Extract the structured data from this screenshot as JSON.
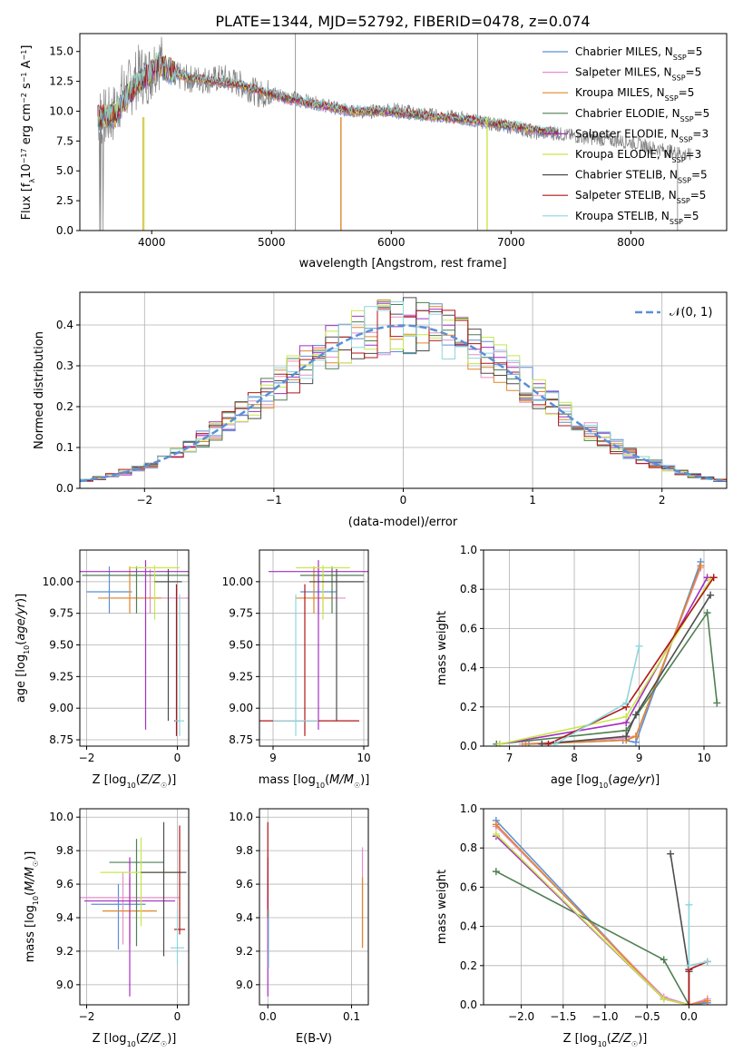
{
  "figure_title": "PLATE=1344, MJD=52792, FIBERID=0478, z=0.074",
  "colors": {
    "Chabrier MILES": "#5b8fd6",
    "Salpeter MILES": "#e68fc8",
    "Kroupa MILES": "#e0862a",
    "Chabrier ELODIE": "#4f7f52",
    "Salpeter ELODIE": "#a62fc1",
    "Kroupa ELODIE": "#c7e84a",
    "Chabrier STELIB": "#4d4d4d",
    "Salpeter STELIB": "#b01616",
    "Kroupa STELIB": "#8fd6dc",
    "data": "#808080",
    "normal": "#5b8fd6"
  },
  "chart_data": [
    {
      "id": "spectrum",
      "type": "line",
      "title": "PLATE=1344, MJD=52792, FIBERID=0478, z=0.074",
      "xlabel": "wavelength [Angstrom, rest frame]",
      "ylabel": "Flux [f_λ 10^-17 erg cm^-2 s^-1 A^-1]",
      "xlim": [
        3400,
        8800
      ],
      "ylim": [
        0,
        16.5
      ],
      "xticks": [
        4000,
        5000,
        6000,
        7000,
        8000
      ],
      "yticks": [
        0.0,
        2.5,
        5.0,
        7.5,
        10.0,
        12.5,
        15.0
      ],
      "legend": "top-right",
      "legend_entries": [
        {
          "label": "Chabrier MILES, N",
          "sub": "SSP",
          "suffix": "=5"
        },
        {
          "label": "Salpeter MILES, N",
          "sub": "SSP",
          "suffix": "=5"
        },
        {
          "label": "Kroupa MILES, N",
          "sub": "SSP",
          "suffix": "=5"
        },
        {
          "label": "Chabrier ELODIE, N",
          "sub": "SSP",
          "suffix": "=5"
        },
        {
          "label": "Salpeter ELODIE, N",
          "sub": "SSP",
          "suffix": "=3"
        },
        {
          "label": "Kroupa ELODIE, N",
          "sub": "SSP",
          "suffix": "=3"
        },
        {
          "label": "Chabrier STELIB, N",
          "sub": "SSP",
          "suffix": "=5"
        },
        {
          "label": "Salpeter STELIB, N",
          "sub": "SSP",
          "suffix": "=5"
        },
        {
          "label": "Kroupa STELIB, N",
          "sub": "SSP",
          "suffix": "=5"
        }
      ],
      "data_series": {
        "x": [
          3550,
          3600,
          3650,
          3700,
          3750,
          3800,
          3850,
          3900,
          3950,
          4000,
          4050,
          4100,
          4200,
          4300,
          4400,
          4500,
          4600,
          4700,
          4800,
          4900,
          5000,
          5200,
          5400,
          5600,
          5800,
          6000,
          6200,
          6400,
          6600,
          6800,
          7000,
          7200,
          7400,
          7600,
          7800,
          8000,
          8200,
          8400,
          8500
        ],
        "y": [
          9.6,
          9.4,
          9.5,
          10.0,
          11.5,
          11.8,
          12.3,
          13.2,
          12.9,
          13.4,
          14.5,
          13.7,
          13.0,
          12.7,
          12.7,
          12.6,
          12.8,
          12.4,
          12.0,
          11.4,
          11.6,
          11.1,
          10.6,
          10.1,
          9.9,
          10.2,
          9.9,
          9.6,
          9.4,
          9.0,
          8.7,
          8.2,
          8.1,
          7.8,
          7.6,
          7.4,
          6.9,
          6.5,
          6.3
        ]
      },
      "model_series": {
        "x": [
          3550,
          3700,
          3850,
          3950,
          4050,
          4150,
          4300,
          4500,
          4700,
          4900,
          5100,
          5300,
          5500,
          5700,
          5900,
          6100,
          6300,
          6500,
          6700,
          6900,
          7100,
          7300,
          7400
        ],
        "y": [
          9.4,
          9.8,
          12.0,
          12.8,
          14.0,
          13.4,
          12.8,
          12.5,
          12.3,
          11.7,
          11.1,
          10.7,
          10.3,
          10.0,
          10.0,
          9.8,
          9.6,
          9.4,
          9.2,
          8.9,
          8.6,
          8.3,
          8.2
        ]
      }
    },
    {
      "id": "residuals",
      "type": "histogram",
      "xlabel": "(data-model)/error",
      "ylabel": "Normed distribution",
      "xlim": [
        -2.5,
        2.5
      ],
      "ylim": [
        0,
        0.48
      ],
      "xticks": [
        -2,
        -1,
        0,
        1,
        2
      ],
      "yticks": [
        0.0,
        0.1,
        0.2,
        0.3,
        0.4
      ],
      "grid": true,
      "legend": "top-right",
      "normal_label": "𝒩(0, 1)",
      "normal_curve": {
        "mean": 0,
        "sigma": 1
      }
    },
    {
      "id": "age_vs_Z",
      "type": "errorbar",
      "xlabel": "Z [log10(Z/Z☉)]",
      "ylabel": "age  [log10(age/yr)]",
      "xlim": [
        -2.15,
        0.25
      ],
      "ylim": [
        8.7,
        10.25
      ],
      "xticks": [
        -2,
        0
      ],
      "yticks": [
        8.75,
        9.0,
        9.25,
        9.5,
        9.75,
        10.0
      ],
      "grid": true,
      "points": [
        {
          "model": "Chabrier MILES",
          "x": -1.5,
          "xerr": 0.5,
          "y": 9.92,
          "ylo": 9.75,
          "yhi": 10.12
        },
        {
          "model": "Salpeter MILES",
          "x": -0.6,
          "xerr": 0.85,
          "y": 9.87,
          "ylo": 9.75,
          "yhi": 10.1
        },
        {
          "model": "Kroupa MILES",
          "x": -1.05,
          "xerr": 0.7,
          "y": 9.87,
          "ylo": 9.75,
          "yhi": 10.12
        },
        {
          "model": "Chabrier ELODIE",
          "x": -0.9,
          "xerr": 1.2,
          "y": 10.05,
          "ylo": 9.75,
          "yhi": 10.12
        },
        {
          "model": "Salpeter ELODIE",
          "x": -0.7,
          "xerr": 1.95,
          "y": 10.08,
          "ylo": 8.83,
          "yhi": 10.17
        },
        {
          "model": "Kroupa ELODIE",
          "x": -0.5,
          "xerr": 0.55,
          "y": 10.11,
          "ylo": 9.7,
          "yhi": 10.13
        },
        {
          "model": "Chabrier STELIB",
          "x": -0.2,
          "xerr": 0.3,
          "y": 10.0,
          "ylo": 8.9,
          "yhi": 10.1
        },
        {
          "model": "Salpeter STELIB",
          "x": -0.02,
          "xerr": 0.05,
          "y": 8.9,
          "ylo": 8.78,
          "yhi": 9.98
        },
        {
          "model": "Kroupa STELIB",
          "x": 0.05,
          "xerr": 0.1,
          "y": 8.9,
          "ylo": 8.78,
          "yhi": 9.9
        }
      ]
    },
    {
      "id": "age_vs_mass",
      "type": "errorbar",
      "xlabel": "mass [log10(M/M☉)]",
      "xlim": [
        8.85,
        10.05
      ],
      "ylim": [
        8.7,
        10.25
      ],
      "xticks": [
        9,
        10
      ],
      "yticks": [
        8.75,
        9.0,
        9.25,
        9.5,
        9.75,
        10.0
      ],
      "grid": true,
      "points": [
        {
          "model": "Chabrier MILES",
          "x": 9.5,
          "xerr": 0.2,
          "y": 9.92,
          "ylo": 9.75,
          "yhi": 10.12
        },
        {
          "model": "Salpeter MILES",
          "x": 9.55,
          "xerr": 0.25,
          "y": 9.87,
          "ylo": 9.75,
          "yhi": 10.1
        },
        {
          "model": "Kroupa MILES",
          "x": 9.45,
          "xerr": 0.2,
          "y": 9.87,
          "ylo": 9.75,
          "yhi": 10.12
        },
        {
          "model": "Chabrier ELODIE",
          "x": 9.65,
          "xerr": 0.35,
          "y": 10.05,
          "ylo": 9.75,
          "yhi": 10.12
        },
        {
          "model": "Salpeter ELODIE",
          "x": 9.5,
          "xerr": 0.55,
          "y": 10.08,
          "ylo": 8.83,
          "yhi": 10.17
        },
        {
          "model": "Kroupa ELODIE",
          "x": 9.55,
          "xerr": 0.3,
          "y": 10.11,
          "ylo": 9.7,
          "yhi": 10.13
        },
        {
          "model": "Chabrier STELIB",
          "x": 9.7,
          "xerr": 0.3,
          "y": 10.0,
          "ylo": 8.9,
          "yhi": 10.1
        },
        {
          "model": "Salpeter STELIB",
          "x": 9.35,
          "xerr": 0.6,
          "y": 8.9,
          "ylo": 8.78,
          "yhi": 9.98
        },
        {
          "model": "Kroupa STELIB",
          "x": 9.25,
          "xerr": 0.25,
          "y": 8.9,
          "ylo": 8.78,
          "yhi": 9.9
        }
      ]
    },
    {
      "id": "weight_vs_age",
      "type": "line",
      "xlabel": "age  [log10(age/yr)]",
      "ylabel": "mass weight",
      "xlim": [
        6.6,
        10.35
      ],
      "ylim": [
        0,
        1.0
      ],
      "xticks": [
        7,
        8,
        9,
        10
      ],
      "yticks": [
        0.0,
        0.2,
        0.4,
        0.6,
        0.8,
        1.0
      ],
      "grid": true,
      "series": [
        {
          "model": "Chabrier MILES",
          "x": [
            7.3,
            8.75,
            8.95,
            9.95
          ],
          "y": [
            0.01,
            0.03,
            0.02,
            0.94
          ]
        },
        {
          "model": "Salpeter MILES",
          "x": [
            7.2,
            8.75,
            8.95,
            9.95
          ],
          "y": [
            0.01,
            0.04,
            0.05,
            0.91
          ]
        },
        {
          "model": "Kroupa MILES",
          "x": [
            7.25,
            8.8,
            8.95,
            9.95
          ],
          "y": [
            0.01,
            0.03,
            0.05,
            0.92
          ]
        },
        {
          "model": "Chabrier ELODIE",
          "x": [
            6.8,
            8.8,
            10.05,
            10.2
          ],
          "y": [
            0.01,
            0.08,
            0.68,
            0.22
          ]
        },
        {
          "model": "Salpeter ELODIE",
          "x": [
            6.85,
            8.8,
            10.05
          ],
          "y": [
            0.01,
            0.12,
            0.86
          ]
        },
        {
          "model": "Kroupa ELODIE",
          "x": [
            6.85,
            8.8,
            10.1
          ],
          "y": [
            0.01,
            0.15,
            0.85
          ]
        },
        {
          "model": "Chabrier STELIB",
          "x": [
            7.5,
            8.8,
            8.95,
            10.1
          ],
          "y": [
            0.01,
            0.05,
            0.16,
            0.77
          ]
        },
        {
          "model": "Salpeter STELIB",
          "x": [
            7.6,
            8.8,
            10.15
          ],
          "y": [
            0.01,
            0.2,
            0.86
          ]
        },
        {
          "model": "Kroupa STELIB",
          "x": [
            7.7,
            8.8,
            9.0
          ],
          "y": [
            0.01,
            0.22,
            0.51
          ]
        }
      ]
    },
    {
      "id": "mass_vs_Z",
      "type": "errorbar",
      "xlabel": "Z [log10(Z/Z☉)]",
      "ylabel": "mass [log10(M/M☉)]",
      "xlim": [
        -2.15,
        0.25
      ],
      "ylim": [
        8.88,
        10.05
      ],
      "xticks": [
        -2,
        0
      ],
      "yticks": [
        9.0,
        9.2,
        9.4,
        9.6,
        9.8,
        10.0
      ],
      "grid": true,
      "points": [
        {
          "model": "Chabrier MILES",
          "x": -1.3,
          "xerr": 0.6,
          "y": 9.48,
          "ylo": 9.21,
          "yhi": 9.6
        },
        {
          "model": "Salpeter MILES",
          "x": -1.2,
          "xerr": 1.25,
          "y": 9.52,
          "ylo": 9.24,
          "yhi": 9.67
        },
        {
          "model": "Kroupa MILES",
          "x": -1.05,
          "xerr": 0.6,
          "y": 9.44,
          "ylo": 9.24,
          "yhi": 9.64
        },
        {
          "model": "Chabrier ELODIE",
          "x": -0.9,
          "xerr": 0.6,
          "y": 9.73,
          "ylo": 9.23,
          "yhi": 9.87
        },
        {
          "model": "Salpeter ELODIE",
          "x": -1.05,
          "xerr": 1.0,
          "y": 9.5,
          "ylo": 8.93,
          "yhi": 9.76
        },
        {
          "model": "Kroupa ELODIE",
          "x": -0.8,
          "xerr": 0.9,
          "y": 9.67,
          "ylo": 9.35,
          "yhi": 9.88
        },
        {
          "model": "Chabrier STELIB",
          "x": -0.3,
          "xerr": 0.5,
          "y": 9.67,
          "ylo": 9.17,
          "yhi": 9.97
        },
        {
          "model": "Salpeter STELIB",
          "x": 0.05,
          "xerr": 0.12,
          "y": 9.33,
          "ylo": 9.3,
          "yhi": 9.95
        },
        {
          "model": "Kroupa STELIB",
          "x": 0.0,
          "xerr": 0.15,
          "y": 9.22,
          "ylo": 9.12,
          "yhi": 9.45
        }
      ]
    },
    {
      "id": "mass_vs_ebv",
      "type": "errorbar",
      "xlabel": "E(B-V)",
      "xlim": [
        -0.01,
        0.12
      ],
      "ylim": [
        8.88,
        10.05
      ],
      "xticks": [
        0.0,
        0.1
      ],
      "yticks": [
        9.0,
        9.2,
        9.4,
        9.6,
        9.8,
        10.0
      ],
      "grid": true,
      "points": [
        {
          "model": "Chabrier MILES",
          "x": 0.0,
          "y": 9.48,
          "ylo": 9.21,
          "yhi": 9.6
        },
        {
          "model": "Salpeter MILES",
          "x": 0.0,
          "y": 9.52,
          "ylo": 9.24,
          "yhi": 9.67
        },
        {
          "model": "Salpeter ELODIE",
          "x": 0.0,
          "y": 9.5,
          "ylo": 8.93,
          "yhi": 9.76
        },
        {
          "model": "Salpeter STELIB",
          "x": 0.0,
          "y": 9.6,
          "ylo": 9.4,
          "yhi": 9.97
        },
        {
          "model": "Kroupa STELIB",
          "x": 0.001,
          "y": 9.22,
          "ylo": 9.1,
          "yhi": 9.45
        },
        {
          "model": "Salpeter MILES",
          "x": 0.113,
          "y": 9.6,
          "ylo": 9.22,
          "yhi": 9.82
        },
        {
          "model": "Kroupa MILES",
          "x": 0.113,
          "y": 9.44,
          "ylo": 9.22,
          "yhi": 9.64
        }
      ]
    },
    {
      "id": "weight_vs_Z",
      "type": "line",
      "xlabel": "Z [log10(Z/Z☉)]",
      "ylabel": "mass weight",
      "xlim": [
        -2.45,
        0.45
      ],
      "ylim": [
        0,
        1.0
      ],
      "xticks": [
        -2.0,
        -1.5,
        -1.0,
        -0.5,
        0.0
      ],
      "yticks": [
        0.0,
        0.2,
        0.4,
        0.6,
        0.8,
        1.0
      ],
      "grid": true,
      "series": [
        {
          "model": "Chabrier MILES",
          "x": [
            -2.3,
            -0.3,
            0.0,
            0.22
          ],
          "y": [
            0.94,
            0.03,
            0.0,
            0.01
          ]
        },
        {
          "model": "Salpeter MILES",
          "x": [
            -2.3,
            -0.3,
            0.0,
            0.22
          ],
          "y": [
            0.91,
            0.04,
            0.0,
            0.03
          ]
        },
        {
          "model": "Kroupa MILES",
          "x": [
            -2.3,
            -0.3,
            0.0,
            0.22
          ],
          "y": [
            0.92,
            0.03,
            0.0,
            0.02
          ]
        },
        {
          "model": "Chabrier ELODIE",
          "x": [
            -2.3,
            -0.3,
            0.0
          ],
          "y": [
            0.68,
            0.23,
            0.0
          ]
        },
        {
          "model": "Salpeter ELODIE",
          "x": [
            -2.3,
            -0.3,
            0.0
          ],
          "y": [
            0.86,
            0.03,
            0.0
          ]
        },
        {
          "model": "Kroupa ELODIE",
          "x": [
            -2.3,
            -0.3,
            0.0
          ],
          "y": [
            0.87,
            0.03,
            0.0
          ]
        },
        {
          "model": "Chabrier STELIB",
          "x": [
            -0.22,
            0.0,
            0.0
          ],
          "y": [
            0.77,
            0.17,
            0.0
          ]
        },
        {
          "model": "Salpeter STELIB",
          "x": [
            0.0,
            0.0,
            0.22
          ],
          "y": [
            0.0,
            0.18,
            0.22
          ]
        },
        {
          "model": "Kroupa STELIB",
          "x": [
            0.0,
            0.0,
            0.22
          ],
          "y": [
            0.51,
            0.2,
            0.22
          ]
        }
      ]
    }
  ]
}
